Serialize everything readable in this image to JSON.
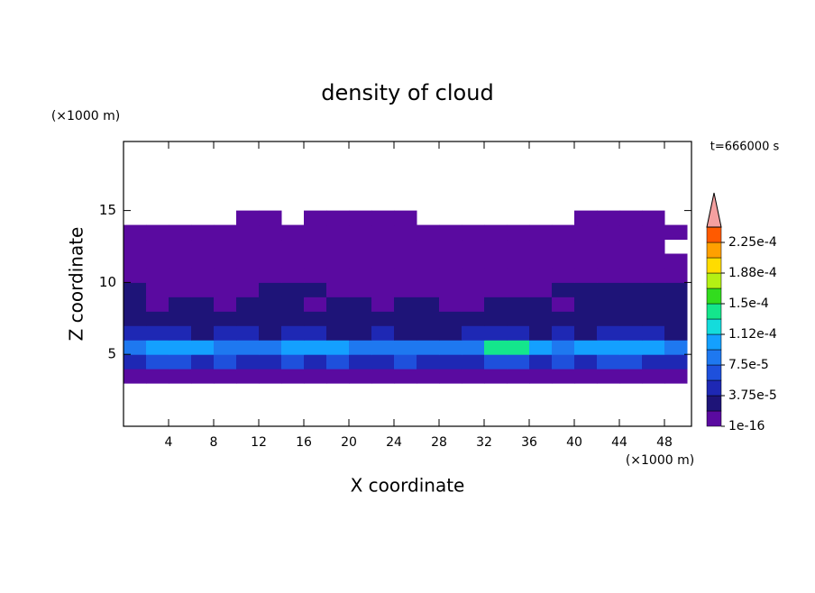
{
  "chart_data": {
    "type": "contour",
    "title": "density of cloud",
    "xlabel": "X coordinate",
    "ylabel": "Z coordinate",
    "xunit": "(×1000 m)",
    "yunit": "(×1000 m)",
    "annotation": "t=666000 s",
    "xlim": [
      0,
      50.4
    ],
    "ylim": [
      0,
      19.8
    ],
    "xticks": [
      4,
      8,
      12,
      16,
      20,
      24,
      28,
      32,
      36,
      40,
      44,
      48
    ],
    "yticks": [
      5,
      10,
      15
    ],
    "x": [
      1,
      3,
      5,
      7,
      9,
      11,
      13,
      15,
      17,
      19,
      21,
      23,
      25,
      27,
      29,
      31,
      33,
      35,
      37,
      39,
      41,
      43,
      45,
      47,
      49
    ],
    "y": [
      3.5,
      4.5,
      5.5,
      6.5,
      7.5,
      8.5,
      9.5,
      10.5,
      11.5,
      12.5,
      13.5,
      14.5
    ],
    "z": [
      [
        1.2e-05,
        1.2e-05,
        1.2e-05,
        1.2e-05,
        1.2e-05,
        1.2e-05,
        1.2e-05,
        1.2e-05,
        1.2e-05,
        1.2e-05,
        1.2e-05,
        1.2e-05,
        1.2e-05,
        1.2e-05,
        1.2e-05,
        1.2e-05,
        1.2e-05,
        1.2e-05,
        1.2e-05,
        1.2e-05,
        1.2e-05,
        1.2e-05,
        1.2e-05,
        1.2e-05,
        1.2e-05
      ],
      [
        5e-05,
        6e-05,
        6e-05,
        5e-05,
        6e-05,
        5e-05,
        5e-05,
        6e-05,
        5e-05,
        6e-05,
        5e-05,
        5e-05,
        6e-05,
        5e-05,
        5e-05,
        5e-05,
        6e-05,
        6e-05,
        5e-05,
        6e-05,
        5e-05,
        6e-05,
        6e-05,
        5e-05,
        5e-05
      ],
      [
        8e-05,
        9.5e-05,
        9.5e-05,
        9.5e-05,
        8e-05,
        8e-05,
        8e-05,
        9.5e-05,
        9.5e-05,
        9.5e-05,
        8e-05,
        8e-05,
        8e-05,
        8e-05,
        8e-05,
        8e-05,
        0.000135,
        0.000135,
        9.5e-05,
        8e-05,
        9.5e-05,
        0.0001,
        0.000105,
        0.0001,
        8e-05
      ],
      [
        4e-05,
        4e-05,
        4e-05,
        3e-05,
        4e-05,
        4e-05,
        3e-05,
        4e-05,
        4e-05,
        3e-05,
        3e-05,
        4e-05,
        3e-05,
        3e-05,
        3e-05,
        4e-05,
        4e-05,
        4e-05,
        3e-05,
        4e-05,
        3e-05,
        4e-05,
        4e-05,
        4e-05,
        3e-05
      ],
      [
        2.5e-05,
        2.5e-05,
        2e-05,
        2.5e-05,
        2.5e-05,
        2e-05,
        2.5e-05,
        2e-05,
        2.5e-05,
        2.5e-05,
        2e-05,
        2e-05,
        2.5e-05,
        2e-05,
        2.5e-05,
        2e-05,
        2.5e-05,
        2e-05,
        2.5e-05,
        2.5e-05,
        2e-05,
        2.5e-05,
        2.5e-05,
        2e-05,
        2.5e-05
      ],
      [
        2e-05,
        1.5e-05,
        2e-05,
        2e-05,
        1.5e-05,
        2e-05,
        2e-05,
        2e-05,
        1.5e-05,
        2e-05,
        2e-05,
        1.5e-05,
        2e-05,
        2e-05,
        1.5e-05,
        1.5e-05,
        2e-05,
        2e-05,
        2e-05,
        1.5e-05,
        2e-05,
        2e-05,
        2e-05,
        2e-05,
        2e-05
      ],
      [
        2e-05,
        1.5e-05,
        1.5e-05,
        1.5e-05,
        1.5e-05,
        1.5e-05,
        2e-05,
        2e-05,
        2e-05,
        1.5e-05,
        1.5e-05,
        1.5e-05,
        1.5e-05,
        1.5e-05,
        1.5e-05,
        1.5e-05,
        1.5e-05,
        1.5e-05,
        1.5e-05,
        2e-05,
        2e-05,
        2e-05,
        2e-05,
        2e-05,
        2e-05
      ],
      [
        5e-06,
        5e-06,
        5e-06,
        5e-06,
        5e-06,
        5e-06,
        5e-06,
        5e-06,
        5e-06,
        5e-06,
        5e-06,
        5e-06,
        5e-06,
        5e-06,
        5e-06,
        5e-06,
        5e-06,
        5e-06,
        5e-06,
        5e-06,
        5e-06,
        5e-06,
        5e-06,
        5e-06,
        5e-06
      ],
      [
        5e-06,
        5e-06,
        5e-06,
        5e-06,
        5e-06,
        5e-06,
        5e-06,
        5e-06,
        5e-06,
        5e-06,
        5e-06,
        5e-06,
        5e-06,
        5e-06,
        5e-06,
        5e-06,
        5e-06,
        5e-06,
        5e-06,
        5e-06,
        5e-06,
        5e-06,
        5e-06,
        5e-06,
        5e-06
      ],
      [
        5e-06,
        5e-06,
        5e-06,
        5e-06,
        5e-06,
        5e-06,
        5e-06,
        5e-06,
        5e-06,
        5e-06,
        5e-06,
        5e-06,
        5e-06,
        5e-06,
        5e-06,
        5e-06,
        5e-06,
        5e-06,
        5e-06,
        5e-06,
        5e-06,
        5e-06,
        5e-06,
        5e-06,
        null
      ],
      [
        5e-06,
        5e-06,
        5e-06,
        5e-06,
        5e-06,
        5e-06,
        5e-06,
        5e-06,
        5e-06,
        5e-06,
        5e-06,
        5e-06,
        5e-06,
        5e-06,
        5e-06,
        5e-06,
        5e-06,
        5e-06,
        5e-06,
        5e-06,
        5e-06,
        5e-06,
        5e-06,
        5e-06,
        5e-06
      ],
      [
        null,
        null,
        null,
        null,
        null,
        5e-06,
        5e-06,
        null,
        5e-06,
        5e-06,
        5e-06,
        5e-06,
        5e-06,
        null,
        null,
        null,
        null,
        null,
        null,
        null,
        5e-06,
        5e-06,
        5e-06,
        5e-06,
        null
      ]
    ],
    "levels": [
      1e-16,
      1.875e-05,
      3.75e-05,
      5.625e-05,
      7.5e-05,
      9.375e-05,
      0.0001125,
      0.00013125,
      0.00015,
      0.00016875,
      0.0001875,
      0.00020625,
      0.000225,
      0.00024375
    ],
    "colors": [
      "#5a0aa0",
      "#1e1478",
      "#1e28b4",
      "#1e50dc",
      "#1e78f0",
      "#14a0ff",
      "#14dcdc",
      "#14e68c",
      "#32dc1e",
      "#b4f014",
      "#ffdc00",
      "#ffa000",
      "#ff5a00"
    ],
    "extend_color": "#f4a0a0",
    "colorbar_ticks": [
      {
        "value": 1e-16,
        "label": "1e-16"
      },
      {
        "value": 3.75e-05,
        "label": "3.75e-5"
      },
      {
        "value": 7.5e-05,
        "label": "7.5e-5"
      },
      {
        "value": 0.0001125,
        "label": "1.12e-4"
      },
      {
        "value": 0.00015,
        "label": "1.5e-4"
      },
      {
        "value": 0.0001875,
        "label": "1.88e-4"
      },
      {
        "value": 0.000225,
        "label": "2.25e-4"
      }
    ]
  }
}
